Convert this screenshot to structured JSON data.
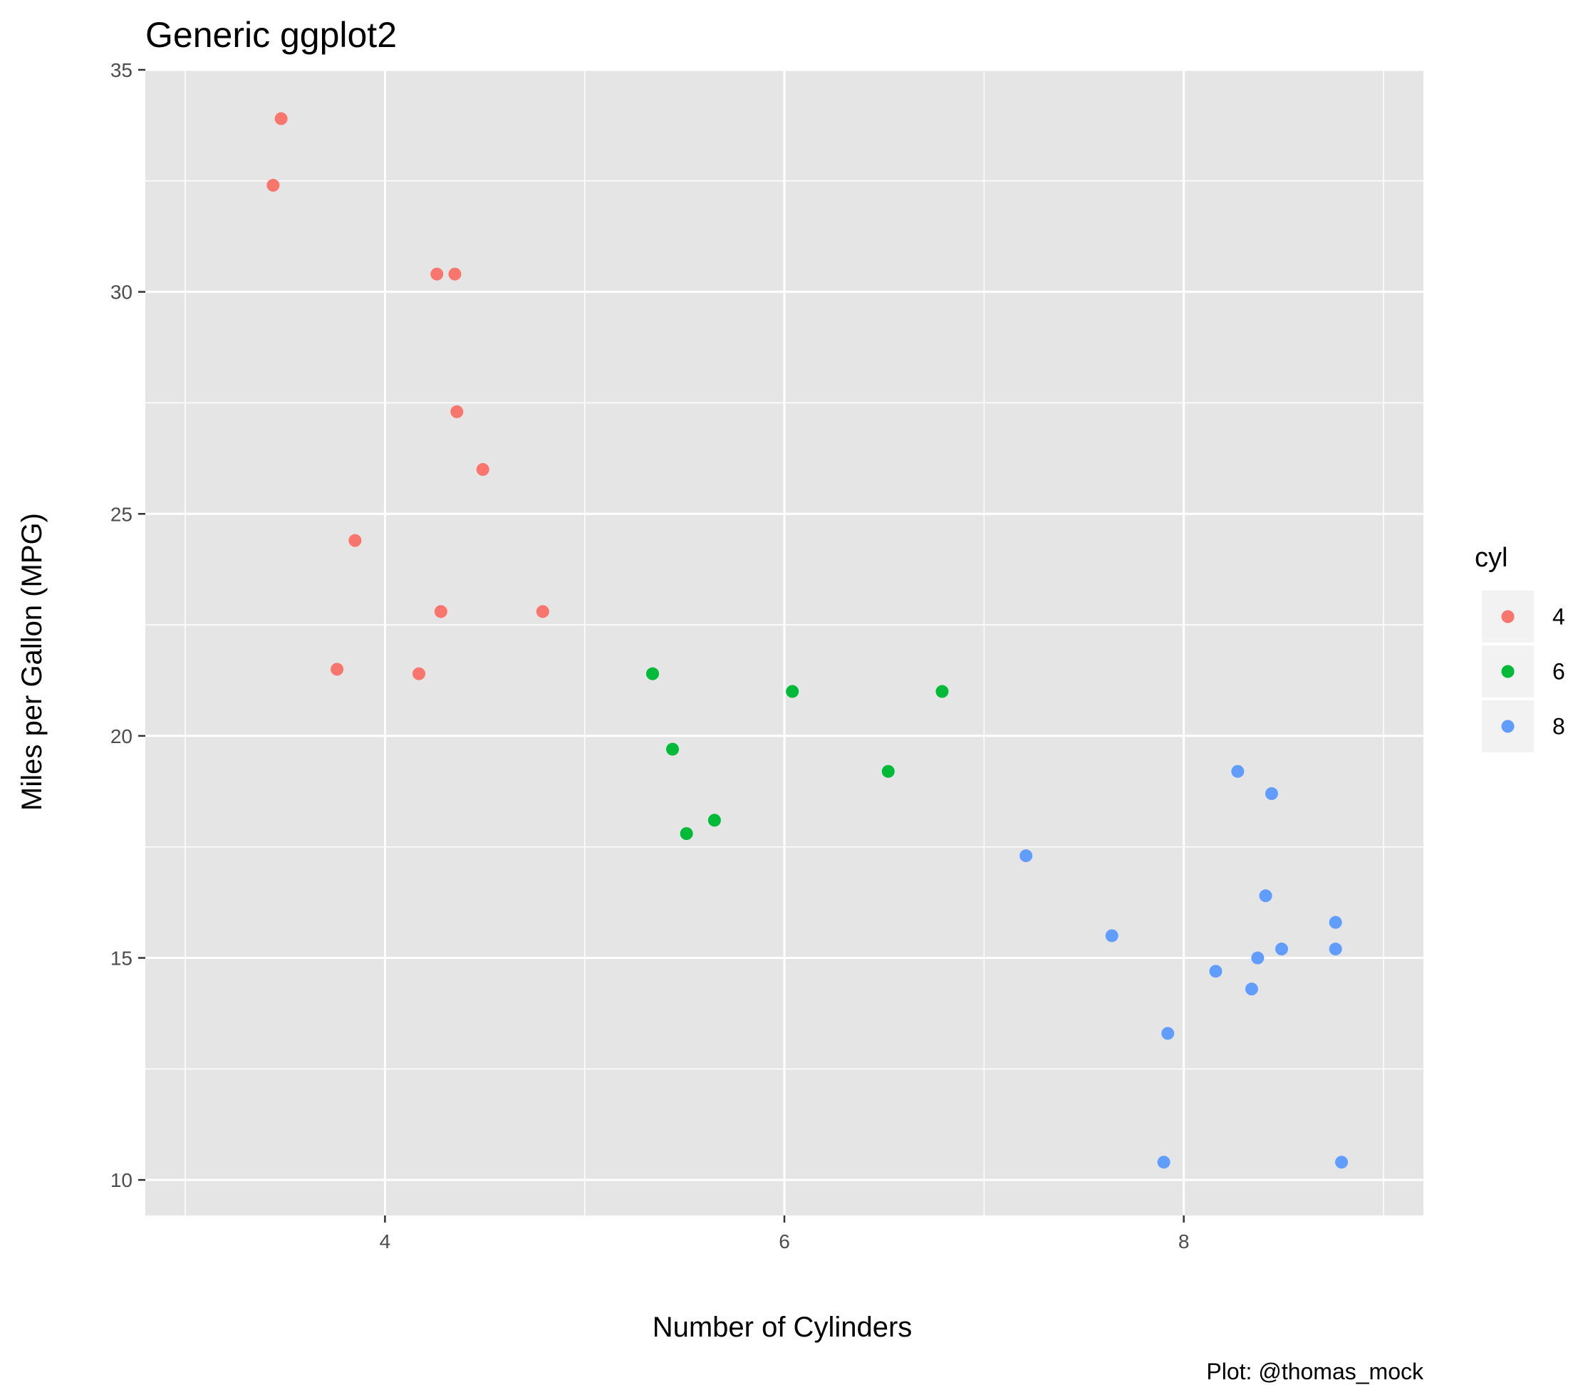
{
  "chart_data": {
    "type": "scatter",
    "title": "Generic ggplot2",
    "xlabel": "Number of Cylinders",
    "ylabel": "Miles per Gallon (MPG)",
    "caption": "Plot: @thomas_mock",
    "xlim": [
      2.8,
      9.2
    ],
    "ylim": [
      9.2,
      35.0
    ],
    "x_ticks": [
      4,
      6,
      8
    ],
    "x_tick_labels": [
      "4",
      "6",
      "8"
    ],
    "y_ticks": [
      10,
      15,
      20,
      25,
      30,
      35
    ],
    "y_tick_labels": [
      "10",
      "15",
      "20",
      "25",
      "30",
      "35"
    ],
    "grid": true,
    "panel_background": "#e5e5e5",
    "legend": {
      "title": "cyl",
      "placement": "right",
      "entries": [
        {
          "label": "4",
          "color": "#f8766d"
        },
        {
          "label": "6",
          "color": "#00ba38"
        },
        {
          "label": "8",
          "color": "#619cff"
        }
      ]
    },
    "series": [
      {
        "name": "4",
        "color": "#f8766d",
        "points": [
          {
            "x": 3.48,
            "y": 33.9
          },
          {
            "x": 3.44,
            "y": 32.4
          },
          {
            "x": 4.26,
            "y": 30.4
          },
          {
            "x": 4.35,
            "y": 30.4
          },
          {
            "x": 4.36,
            "y": 27.3
          },
          {
            "x": 4.49,
            "y": 26.0
          },
          {
            "x": 3.85,
            "y": 24.4
          },
          {
            "x": 4.28,
            "y": 22.8
          },
          {
            "x": 4.79,
            "y": 22.8
          },
          {
            "x": 3.76,
            "y": 21.5
          },
          {
            "x": 4.17,
            "y": 21.4
          }
        ]
      },
      {
        "name": "6",
        "color": "#00ba38",
        "points": [
          {
            "x": 5.34,
            "y": 21.4
          },
          {
            "x": 6.04,
            "y": 21.0
          },
          {
            "x": 6.79,
            "y": 21.0
          },
          {
            "x": 5.44,
            "y": 19.7
          },
          {
            "x": 6.52,
            "y": 19.2
          },
          {
            "x": 5.65,
            "y": 18.1
          },
          {
            "x": 5.51,
            "y": 17.8
          }
        ]
      },
      {
        "name": "8",
        "color": "#619cff",
        "points": [
          {
            "x": 8.27,
            "y": 19.2
          },
          {
            "x": 8.44,
            "y": 18.7
          },
          {
            "x": 7.21,
            "y": 17.3
          },
          {
            "x": 8.41,
            "y": 16.4
          },
          {
            "x": 8.76,
            "y": 15.8
          },
          {
            "x": 7.64,
            "y": 15.5
          },
          {
            "x": 8.49,
            "y": 15.2
          },
          {
            "x": 8.76,
            "y": 15.2
          },
          {
            "x": 8.37,
            "y": 15.0
          },
          {
            "x": 8.16,
            "y": 14.7
          },
          {
            "x": 8.34,
            "y": 14.3
          },
          {
            "x": 7.92,
            "y": 13.3
          },
          {
            "x": 7.9,
            "y": 10.4
          },
          {
            "x": 8.79,
            "y": 10.4
          }
        ]
      }
    ]
  }
}
